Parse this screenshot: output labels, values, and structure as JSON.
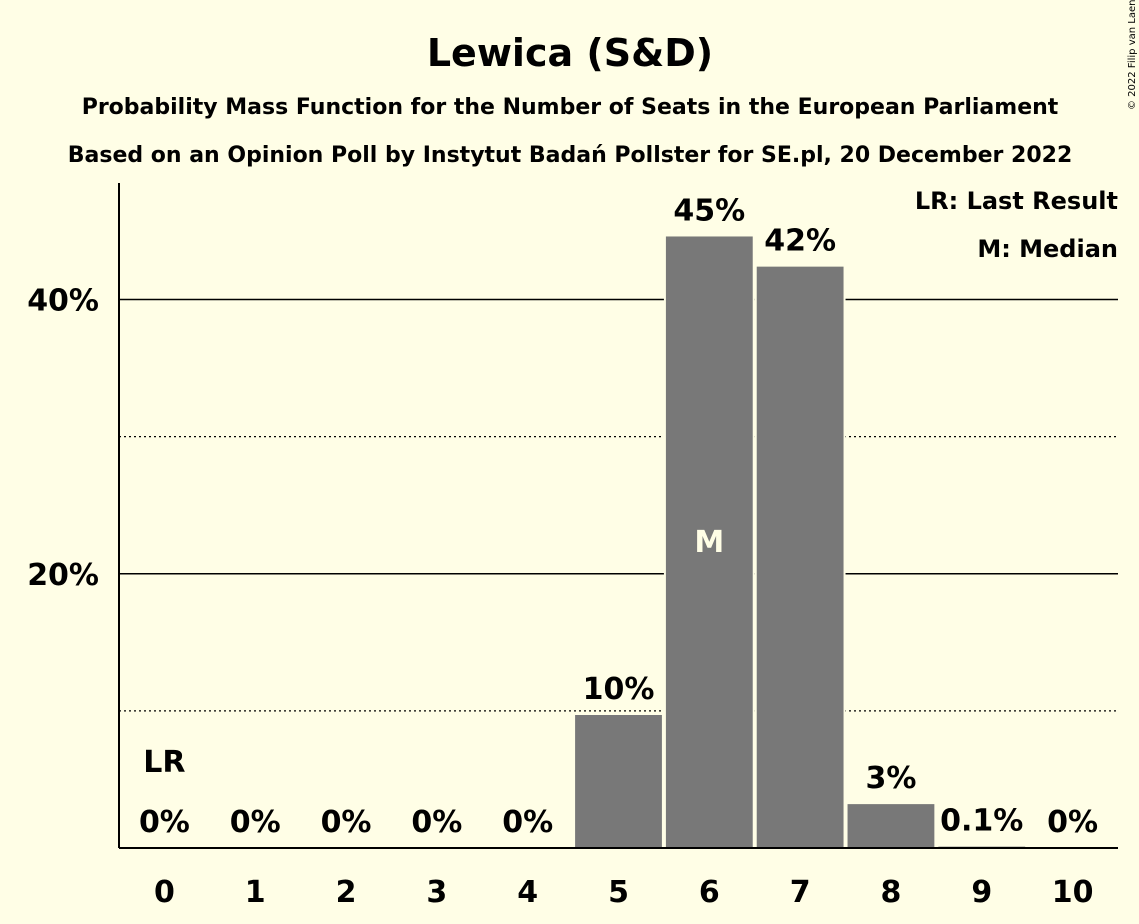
{
  "chart_data": {
    "type": "bar",
    "title": "Lewica (S&D)",
    "subtitle_1": "Probability Mass Function for the Number of Seats in the European Parliament",
    "subtitle_2": "Based on an Opinion Poll by Instytut Badań Pollster for SE.pl, 20 December 2022",
    "copyright": "© 2022 Filip van Laenen",
    "categories": [
      "0",
      "1",
      "2",
      "3",
      "4",
      "5",
      "6",
      "7",
      "8",
      "9",
      "10"
    ],
    "values": [
      0,
      0,
      0,
      0,
      0,
      9.7,
      44.6,
      42.4,
      3.2,
      0.1,
      0
    ],
    "value_labels": [
      "0%",
      "0%",
      "0%",
      "0%",
      "0%",
      "10%",
      "45%",
      "42%",
      "3%",
      "0.1%",
      "0%"
    ],
    "ylim": [
      0,
      48.5
    ],
    "y_ticks": [
      {
        "value": 20,
        "label": "20%"
      },
      {
        "value": 40,
        "label": "40%"
      }
    ],
    "y_minor_ticks": [
      10,
      30
    ],
    "last_result": {
      "category": "0",
      "label": "LR"
    },
    "median": {
      "category": "6",
      "label": "M"
    },
    "legend": [
      "LR: Last Result",
      "M: Median"
    ],
    "legend_position": "top-right",
    "colors": {
      "background": "#FFFEE6",
      "bar": "#787878",
      "median_text": "#FFFEE6"
    }
  }
}
